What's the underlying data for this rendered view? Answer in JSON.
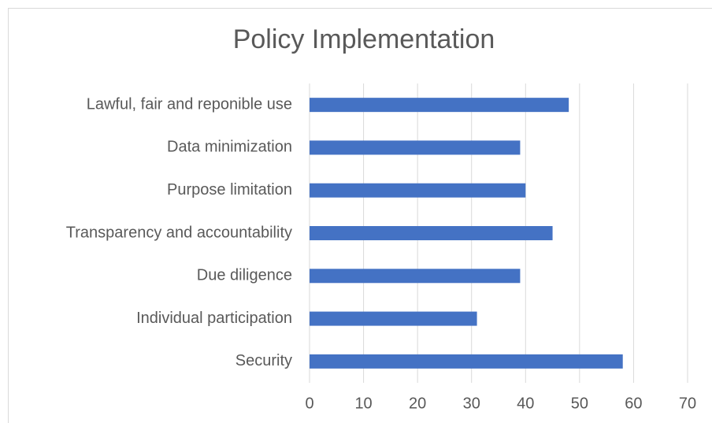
{
  "chart_data": {
    "type": "bar",
    "orientation": "horizontal",
    "title": "Policy Implementation",
    "categories": [
      "Lawful, fair and reponible use",
      "Data minimization",
      "Purpose limitation",
      "Transparency and accountability",
      "Due diligence",
      "Individual participation",
      "Security"
    ],
    "values": [
      48,
      39,
      40,
      45,
      39,
      31,
      58
    ],
    "color": "#4472c4",
    "xlim": [
      0,
      70
    ],
    "xticks": [
      0,
      10,
      20,
      30,
      40,
      50,
      60,
      70
    ],
    "grid": true
  }
}
